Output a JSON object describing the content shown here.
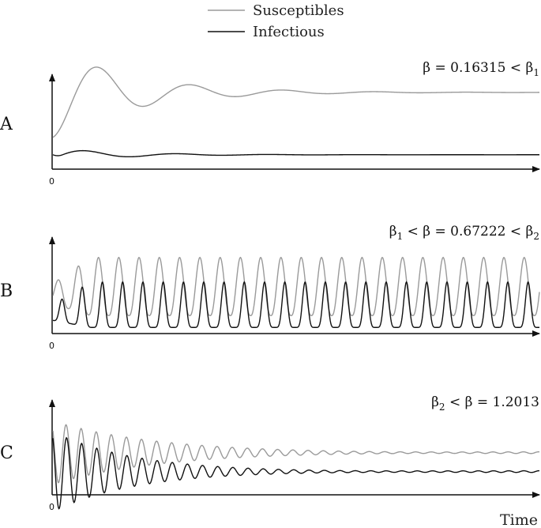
{
  "legend": {
    "placement": "top-center",
    "items": [
      {
        "label": "Susceptibles",
        "color": "#9a9a9a"
      },
      {
        "label": "Infectious",
        "color": "#111111"
      }
    ]
  },
  "xlabel": "Time",
  "chart_data": [
    {
      "type": "line",
      "panel_label": "A",
      "annotation": {
        "lhs": "",
        "mid": "β = 0.16315",
        "rhs": "β",
        "rhs_sub": "1"
      },
      "x_tick_label": "0",
      "grid": false,
      "dynamics": "damped oscillation to steady state",
      "series": [
        {
          "name": "Susceptibles",
          "start": 0.33,
          "steady": 0.82,
          "amplitude": 0.16,
          "period": 0.19,
          "decay": 0.16
        },
        {
          "name": "Infectious",
          "start": 0.08,
          "steady": 0.14,
          "amplitude": 0.07,
          "period": 0.19,
          "decay": 0.14
        }
      ]
    },
    {
      "type": "line",
      "panel_label": "B",
      "annotation": {
        "lhs": "β",
        "lhs_sub": "1",
        "mid": "β = 0.67222",
        "rhs": "β",
        "rhs_sub": "2"
      },
      "x_tick_label": "0",
      "grid": false,
      "dynamics": "sustained periodic oscillation",
      "cycles": 24,
      "series": [
        {
          "name": "Susceptibles",
          "min": 0.18,
          "max": 0.82
        },
        {
          "name": "Infectious",
          "min": 0.05,
          "max": 0.55
        }
      ]
    },
    {
      "type": "line",
      "panel_label": "C",
      "annotation": {
        "lhs": "β",
        "lhs_sub": "2",
        "mid": "β = 1.2013",
        "rhs": ""
      },
      "x_tick_label": "0",
      "grid": false,
      "dynamics": "damped high-frequency oscillation",
      "series": [
        {
          "name": "Susceptibles",
          "start": 0.45,
          "steady": 0.45,
          "amplitude": 0.36,
          "period": 0.031,
          "decay": 0.22
        },
        {
          "name": "Infectious",
          "start": 0.35,
          "steady": 0.24,
          "amplitude": 0.45,
          "period": 0.031,
          "decay": 0.17
        }
      ]
    }
  ]
}
